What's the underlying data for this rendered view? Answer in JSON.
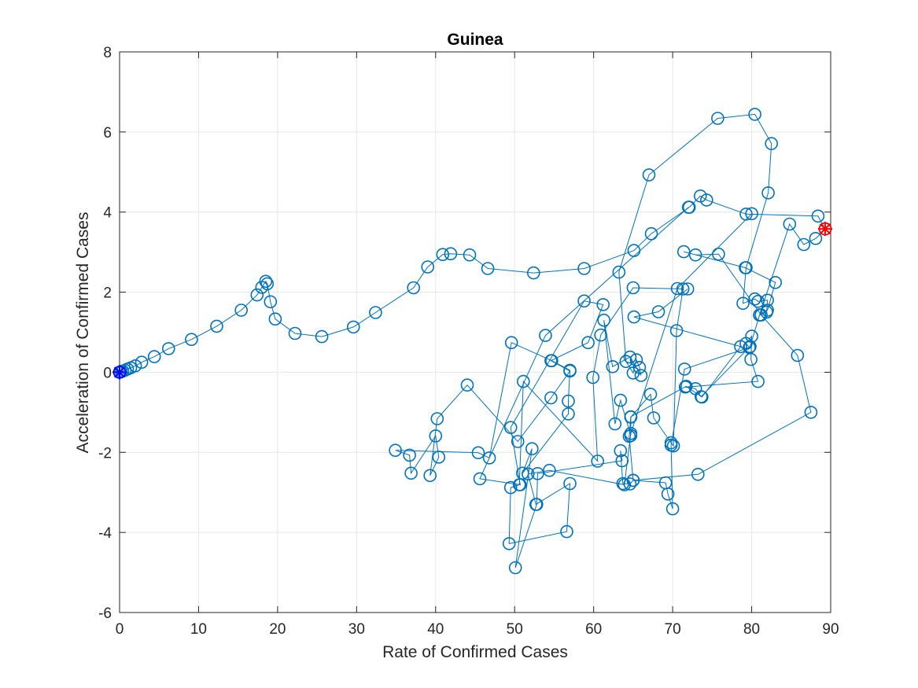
{
  "chart_data": {
    "type": "scatter",
    "title": "Guinea",
    "xlabel": "Rate of Confirmed Cases",
    "ylabel": "Acceleration of Confirmed Cases",
    "xlim": [
      0,
      90
    ],
    "ylim": [
      -6,
      8
    ],
    "xticks": [
      0,
      10,
      20,
      30,
      40,
      50,
      60,
      70,
      80,
      90
    ],
    "yticks": [
      -6,
      -4,
      -2,
      0,
      2,
      4,
      6,
      8
    ],
    "grid": true,
    "series": [
      {
        "marker": "circle",
        "connected": true,
        "color": "#0072BD",
        "points": [
          [
            0,
            0
          ],
          [
            0.2,
            0.02
          ],
          [
            0.4,
            0.03
          ],
          [
            0.7,
            0.05
          ],
          [
            1.0,
            0.08
          ],
          [
            1.4,
            0.11
          ],
          [
            2.0,
            0.16
          ],
          [
            2.8,
            0.25
          ],
          [
            4.4,
            0.39
          ],
          [
            6.2,
            0.59
          ],
          [
            9.1,
            0.82
          ],
          [
            12.3,
            1.15
          ],
          [
            15.4,
            1.55
          ],
          [
            17.4,
            1.93
          ],
          [
            18.0,
            2.12
          ],
          [
            18.5,
            2.27
          ],
          [
            18.7,
            2.21
          ],
          [
            19.1,
            1.76
          ],
          [
            19.7,
            1.33
          ],
          [
            22.2,
            0.97
          ],
          [
            25.6,
            0.89
          ],
          [
            29.6,
            1.13
          ],
          [
            32.4,
            1.49
          ],
          [
            37.2,
            2.11
          ],
          [
            39.0,
            2.63
          ],
          [
            40.9,
            2.94
          ],
          [
            41.9,
            2.96
          ],
          [
            44.3,
            2.93
          ],
          [
            46.6,
            2.59
          ],
          [
            52.4,
            2.48
          ],
          [
            58.8,
            2.59
          ],
          [
            65.1,
            3.04
          ],
          [
            67.3,
            3.46
          ],
          [
            72.1,
            4.12
          ],
          [
            73.5,
            4.4
          ],
          [
            74.3,
            4.3
          ],
          [
            79.3,
            3.95
          ],
          [
            88.4,
            3.9
          ],
          [
            89.3,
            3.58
          ]
        ]
      },
      {
        "marker": "circle",
        "connected": true,
        "color": "#0072BD",
        "points": [
          [
            89.3,
            3.58
          ],
          [
            88.1,
            3.34
          ],
          [
            86.6,
            3.19
          ],
          [
            84.8,
            3.7
          ],
          [
            81.0,
            1.43
          ],
          [
            81.9,
            1.5
          ],
          [
            82.0,
            1.8
          ],
          [
            80.8,
            1.77
          ],
          [
            80.4,
            1.83
          ],
          [
            78.9,
            1.72
          ],
          [
            79.3,
            2.61
          ],
          [
            82.1,
            4.48
          ],
          [
            82.5,
            5.71
          ],
          [
            80.4,
            6.44
          ],
          [
            75.7,
            6.34
          ],
          [
            67.0,
            4.93
          ],
          [
            63.2,
            2.5
          ],
          [
            64.1,
            0.27
          ],
          [
            65.0,
            -0.02
          ],
          [
            65.4,
            0.31
          ],
          [
            65.8,
            0.12
          ],
          [
            66.0,
            -0.08
          ],
          [
            64.6,
            0.38
          ],
          [
            62.4,
            0.14
          ],
          [
            61.3,
            1.3
          ],
          [
            62.7,
            -1.29
          ],
          [
            63.4,
            -0.7
          ],
          [
            64.7,
            -1.58
          ],
          [
            64.7,
            -1.12
          ],
          [
            67.2,
            -0.55
          ],
          [
            67.6,
            -1.14
          ],
          [
            69.8,
            -1.76
          ],
          [
            70.1,
            -1.84
          ],
          [
            70.5,
            1.04
          ],
          [
            71.3,
            2.08
          ],
          [
            65.0,
            2.11
          ],
          [
            60.9,
            0.93
          ],
          [
            59.9,
            -0.13
          ],
          [
            60.5,
            -2.22
          ],
          [
            51.1,
            -0.23
          ],
          [
            50.6,
            -2.81
          ],
          [
            49.5,
            -2.88
          ],
          [
            49.3,
            -4.28
          ],
          [
            56.6,
            -3.98
          ],
          [
            57.0,
            -2.78
          ],
          [
            52.7,
            -3.3
          ],
          [
            51.7,
            -2.54
          ],
          [
            54.4,
            -2.45
          ],
          [
            63.9,
            -2.81
          ],
          [
            64.7,
            -1.53
          ],
          [
            70.6,
            2.09
          ],
          [
            80.0,
            3.96
          ]
        ]
      },
      {
        "marker": "circle",
        "connected": true,
        "color": "#0072BD",
        "points": [
          [
            72.0,
            4.12
          ],
          [
            53.9,
            0.92
          ],
          [
            45.6,
            -2.66
          ],
          [
            50.7,
            -2.81
          ],
          [
            49.5,
            -1.38
          ],
          [
            58.8,
            1.78
          ],
          [
            61.2,
            1.69
          ],
          [
            59.3,
            0.74
          ],
          [
            54.6,
            0.29
          ],
          [
            57.0,
            0.03
          ],
          [
            54.6,
            -0.64
          ],
          [
            50.4,
            -1.73
          ],
          [
            44.0,
            -0.32
          ],
          [
            40.2,
            -1.16
          ],
          [
            39.3,
            -2.58
          ],
          [
            40.4,
            -2.12
          ],
          [
            40.0,
            -1.59
          ],
          [
            36.9,
            -2.52
          ],
          [
            36.7,
            -2.07
          ],
          [
            34.9,
            -1.95
          ],
          [
            45.4,
            -2.01
          ],
          [
            46.8,
            -2.14
          ],
          [
            49.6,
            0.74
          ],
          [
            54.7,
            0.29
          ],
          [
            57.0,
            0.05
          ],
          [
            56.8,
            -0.72
          ],
          [
            56.8,
            -1.04
          ],
          [
            51.0,
            -2.52
          ],
          [
            52.2,
            -1.91
          ],
          [
            50.1,
            -4.88
          ],
          [
            52.8,
            -3.3
          ],
          [
            52.9,
            -2.53
          ],
          [
            63.6,
            -2.21
          ],
          [
            63.4,
            -1.96
          ],
          [
            63.7,
            -2.78
          ],
          [
            64.6,
            -2.79
          ],
          [
            65.0,
            -2.7
          ],
          [
            69.1,
            -2.76
          ],
          [
            69.4,
            -3.04
          ],
          [
            70.0,
            -3.41
          ],
          [
            69.8,
            -1.82
          ],
          [
            71.5,
            0.08
          ],
          [
            79.7,
            0.62
          ],
          [
            79.3,
            0.72
          ],
          [
            80.0,
            0.9
          ],
          [
            79.9,
            0.32
          ],
          [
            80.8,
            -0.23
          ],
          [
            71.6,
            -0.37
          ],
          [
            72.9,
            -0.41
          ],
          [
            73.6,
            -0.61
          ],
          [
            79.8,
            0.64
          ],
          [
            81.0,
            1.43
          ],
          [
            82.0,
            1.55
          ],
          [
            83.0,
            2.24
          ],
          [
            79.2,
            2.61
          ],
          [
            71.4,
            3.01
          ]
        ]
      },
      {
        "marker": "circle",
        "connected": true,
        "color": "#0072BD",
        "points": [
          [
            72.9,
            2.93
          ],
          [
            75.8,
            2.95
          ],
          [
            81.2,
            1.43
          ],
          [
            85.8,
            0.42
          ],
          [
            87.5,
            -1.0
          ],
          [
            73.2,
            -2.55
          ],
          [
            65.0,
            -2.7
          ],
          [
            64.5,
            -1.6
          ],
          [
            64.7,
            -1.11
          ],
          [
            71.7,
            -0.35
          ],
          [
            73.7,
            -0.62
          ],
          [
            78.6,
            0.64
          ],
          [
            65.1,
            1.38
          ],
          [
            68.2,
            1.51
          ],
          [
            71.9,
            2.08
          ]
        ]
      }
    ],
    "start_marker": {
      "x": 0,
      "y": 0,
      "color": "#0000FF",
      "symbol": "asterisk"
    },
    "end_marker": {
      "x": 89.3,
      "y": 3.58,
      "color": "#FF0000",
      "symbol": "asterisk"
    }
  }
}
